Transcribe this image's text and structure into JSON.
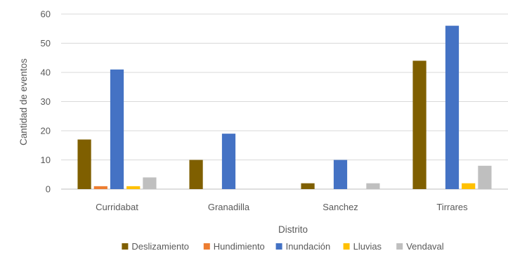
{
  "chart_data": {
    "type": "bar",
    "title": "",
    "xlabel": "Distrito",
    "ylabel": "Cantidad de eventos",
    "ylim": [
      0,
      60
    ],
    "yticks": [
      0,
      10,
      20,
      30,
      40,
      50,
      60
    ],
    "grid": true,
    "legend_position": "bottom",
    "categories": [
      "Curridabat",
      "Granadilla",
      "Sanchez",
      "Tirrares"
    ],
    "series": [
      {
        "name": "Deslizamiento",
        "color": "#7f5f00",
        "values": [
          17,
          10,
          2,
          44
        ]
      },
      {
        "name": "Hundimiento",
        "color": "#ed7d31",
        "values": [
          1,
          0,
          0,
          0
        ]
      },
      {
        "name": "Inundación",
        "color": "#4472c4",
        "values": [
          41,
          19,
          10,
          56
        ]
      },
      {
        "name": "Lluvias",
        "color": "#ffc000",
        "values": [
          1,
          0,
          0,
          2
        ]
      },
      {
        "name": "Vendaval",
        "color": "#bfbfbf",
        "values": [
          4,
          0,
          2,
          8
        ]
      }
    ]
  }
}
